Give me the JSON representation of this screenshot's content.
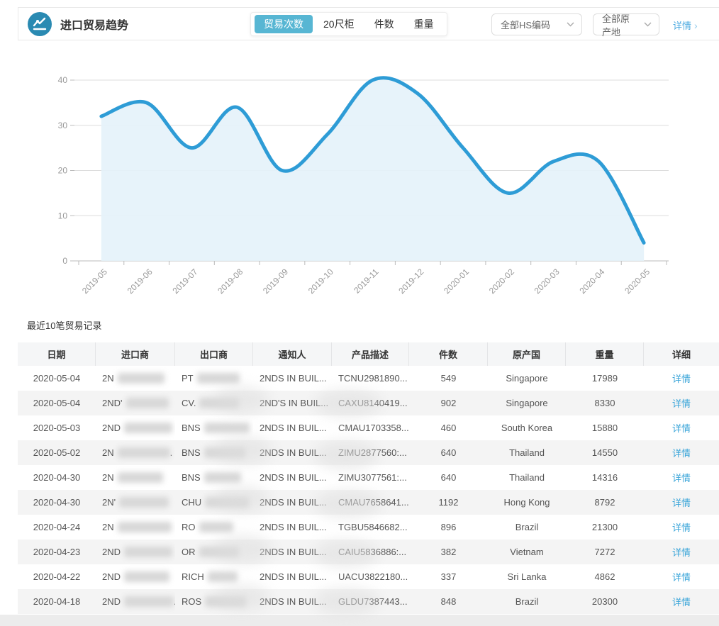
{
  "header": {
    "title": "进口贸易趋势",
    "tabs": [
      {
        "label": "贸易次数",
        "active": true
      },
      {
        "label": "20尺柜",
        "active": false
      },
      {
        "label": "件数",
        "active": false
      },
      {
        "label": "重量",
        "active": false
      }
    ],
    "filters": [
      {
        "label": "全部HS编码"
      },
      {
        "label": "全部原产地"
      }
    ],
    "detail_link": "详情"
  },
  "colors": {
    "accent": "#57b6d3",
    "icon_bg": "#2a8ab2",
    "link": "#3aa5d9",
    "chart_line": "#2e9cd6",
    "chart_fill": "#e4f2fa",
    "grid": "#dddddd",
    "axis": "#bbbbbb",
    "tick_label": "#999999"
  },
  "chart_data": {
    "type": "area",
    "title": "",
    "xlabel": "",
    "ylabel": "",
    "x": [
      "2019-05",
      "2019-06",
      "2019-07",
      "2019-08",
      "2019-09",
      "2019-10",
      "2019-11",
      "2019-12",
      "2020-01",
      "2020-02",
      "2020-03",
      "2020-04",
      "2020-05"
    ],
    "series": [
      {
        "name": "贸易次数",
        "values": [
          32,
          35,
          25,
          34,
          20,
          28,
          40,
          37,
          25,
          15,
          22,
          22,
          4
        ]
      }
    ],
    "ylim": [
      0,
      40
    ],
    "yticks": [
      0,
      10,
      20,
      30,
      40
    ],
    "grid": true,
    "legend_position": "none",
    "smooth": true
  },
  "table": {
    "title": "最近10笔贸易记录",
    "columns": [
      "日期",
      "进口商",
      "出口商",
      "通知人",
      "产品描述",
      "件数",
      "原产国",
      "重量",
      "详细"
    ],
    "detail_label": "详情",
    "rows": [
      {
        "date": "2020-05-04",
        "importer_prefix": "2N",
        "importer_suffix": "",
        "exporter_prefix": "PT",
        "notifier": "2NDS IN BUIL...",
        "product": "TCNU2981890...",
        "pieces": "549",
        "origin": "Singapore",
        "weight": "17989"
      },
      {
        "date": "2020-05-04",
        "importer_prefix": "2ND'",
        "importer_suffix": "",
        "exporter_prefix": "CV.",
        "notifier": "2ND'S IN BUIL...",
        "product": "CAXU8140419...",
        "pieces": "902",
        "origin": "Singapore",
        "weight": "8330"
      },
      {
        "date": "2020-05-03",
        "importer_prefix": "2ND",
        "importer_suffix": "",
        "exporter_prefix": "BNS",
        "notifier": "2NDS IN BUIL...",
        "product": "CMAU1703358...",
        "pieces": "460",
        "origin": "South Korea",
        "weight": "15880"
      },
      {
        "date": "2020-05-02",
        "importer_prefix": "2N",
        "importer_suffix": ".",
        "exporter_prefix": "BNS",
        "notifier": "2NDS IN BUIL...",
        "product": "ZIMU2877560:...",
        "pieces": "640",
        "origin": "Thailand",
        "weight": "14550"
      },
      {
        "date": "2020-04-30",
        "importer_prefix": "2N",
        "importer_suffix": "",
        "exporter_prefix": "BNS",
        "notifier": "2NDS IN BUIL...",
        "product": "ZIMU3077561:...",
        "pieces": "640",
        "origin": "Thailand",
        "weight": "14316"
      },
      {
        "date": "2020-04-30",
        "importer_prefix": "2N'",
        "importer_suffix": "",
        "exporter_prefix": "CHU",
        "notifier": "2NDS IN BUIL...",
        "product": "CMAU7658641...",
        "pieces": "1192",
        "origin": "Hong Kong",
        "weight": "8792"
      },
      {
        "date": "2020-04-24",
        "importer_prefix": "2N",
        "importer_suffix": "",
        "exporter_prefix": "RO",
        "notifier": "2NDS IN BUIL...",
        "product": "TGBU5846682...",
        "pieces": "896",
        "origin": "Brazil",
        "weight": "21300"
      },
      {
        "date": "2020-04-23",
        "importer_prefix": "2ND",
        "importer_suffix": "",
        "exporter_prefix": "OR",
        "notifier": "2NDS IN BUIL...",
        "product": "CAIU5836886:...",
        "pieces": "382",
        "origin": "Vietnam",
        "weight": "7272"
      },
      {
        "date": "2020-04-22",
        "importer_prefix": "2ND",
        "importer_suffix": "",
        "exporter_prefix": "RICH",
        "notifier": "2NDS IN BUIL...",
        "product": "UACU3822180...",
        "pieces": "337",
        "origin": "Sri Lanka",
        "weight": "4862"
      },
      {
        "date": "2020-04-18",
        "importer_prefix": "2ND",
        "importer_suffix": ".",
        "exporter_prefix": "ROS",
        "notifier": "2NDS IN BUIL...",
        "product": "GLDU7387443...",
        "pieces": "848",
        "origin": "Brazil",
        "weight": "20300"
      }
    ]
  }
}
